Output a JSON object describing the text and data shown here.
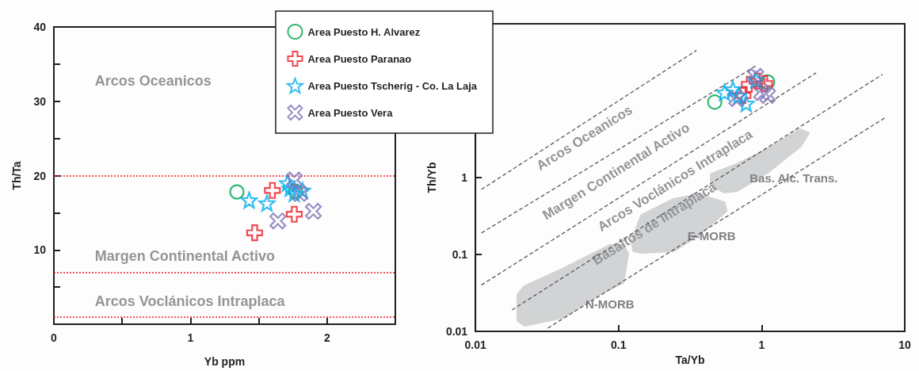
{
  "chart_data": [
    {
      "type": "scatter",
      "xlabel": "Yb ppm",
      "ylabel": "Th/Ta",
      "xlim": [
        0,
        2.5
      ],
      "ylim": [
        0,
        40
      ],
      "xticks": [
        0,
        {
          "value": 0.5,
          "label": null
        },
        1,
        {
          "value": 1.5,
          "label": null
        },
        2
      ],
      "yticks": [
        {
          "value": 0,
          "label": null
        },
        {
          "value": 5,
          "label": null
        },
        10,
        {
          "value": 15,
          "label": null
        },
        20,
        {
          "value": 25,
          "label": null
        },
        30,
        {
          "value": 35,
          "label": null
        },
        40
      ],
      "grid": false,
      "legend": "top right",
      "ref_lines": [
        {
          "axis": "y",
          "value": 20,
          "color": "#ed1c24",
          "line_style": "dotted"
        },
        {
          "axis": "y",
          "value": 7,
          "color": "#ed1c24",
          "line_style": "dotted"
        },
        {
          "axis": "y",
          "value": 1,
          "color": "#ed1c24",
          "line_style": "dotted"
        }
      ],
      "annotations": [
        "Arcos Oceanicos",
        "Margen Continental Activo",
        "Arcos Voclánicos Intraplaca"
      ],
      "series": [
        {
          "name": "Area Puesto H. Alvarez",
          "color": "#00a651",
          "marker": "circle",
          "x": [
            1.34,
            1.77
          ],
          "values": [
            17.8,
            17.9
          ]
        },
        {
          "name": "Area Puesto Paranao",
          "color": "#ed1c24",
          "marker": "cross",
          "x": [
            1.47,
            1.76,
            1.6
          ],
          "values": [
            12.3,
            14.8,
            18
          ]
        },
        {
          "name": "Area Puesto Tscherig - Co. La Laja",
          "color": "#00aeef",
          "marker": "star",
          "x": [
            1.43,
            1.56,
            1.71,
            1.76,
            1.82,
            1.73
          ],
          "values": [
            16.7,
            16.3,
            19,
            17.6,
            18,
            18.3
          ]
        },
        {
          "name": "Area Puesto Vera",
          "color": "#8073b8",
          "marker": "x",
          "x": [
            1.64,
            1.9,
            1.76,
            1.8
          ],
          "values": [
            13.9,
            15.2,
            19.4,
            17.6
          ]
        }
      ]
    },
    {
      "type": "scatter",
      "xlabel": "Ta/Yb",
      "ylabel": "Th/Yb",
      "log": "xy",
      "xlim": [
        0.01,
        10
      ],
      "ylim": [
        0.01,
        100
      ],
      "xticks": [
        0.01,
        0.1,
        1,
        10
      ],
      "yticks": [
        0.01,
        0.1,
        1,
        {
          "value": 10,
          "label": null
        },
        {
          "value": 100,
          "label": null
        }
      ],
      "grid": false,
      "annotations": [
        "Arcos Oceanicos",
        "Margen Continental Activo",
        "Arcos Voclánicos Intraplaca",
        "Basaltos de Intraplaca",
        "N-MORB",
        "E-MORB",
        "Bas. Alc. Trans."
      ],
      "series": [
        {
          "type": "line",
          "color": "#58595b",
          "line_style": "dashed",
          "marker": "none",
          "x": [
            0.011,
            0.35
          ],
          "values": [
            0.7,
            45
          ]
        },
        {
          "type": "line",
          "color": "#58595b",
          "line_style": "dashed",
          "marker": "none",
          "x": [
            0.011,
            0.93
          ],
          "values": [
            0.19,
            29
          ]
        },
        {
          "type": "line",
          "color": "#58595b",
          "line_style": "dashed",
          "marker": "none",
          "x": [
            0.011,
            2.4
          ],
          "values": [
            0.04,
            23
          ]
        },
        {
          "type": "line",
          "color": "#58595b",
          "line_style": "dashed",
          "marker": "none",
          "x": [
            0.018,
            7
          ],
          "values": [
            0.019,
            22
          ]
        },
        {
          "type": "line",
          "color": "#58595b",
          "line_style": "dashed",
          "marker": "none",
          "x": [
            0.032,
            7.4
          ],
          "values": [
            0.011,
            6.1
          ]
        },
        {
          "color": "#00a651",
          "marker": "circle",
          "x": [
            0.47,
            1.1
          ],
          "values": [
            9.6,
            17.5
          ]
        },
        {
          "color": "#ed1c24",
          "marker": "cross",
          "x": [
            0.74,
            0.82,
            1.05,
            0.93
          ],
          "values": [
            11.7,
            16.3,
            16.7,
            17.9
          ]
        },
        {
          "color": "#00aeef",
          "marker": "star",
          "x": [
            0.55,
            0.63,
            0.78,
            0.69,
            0.91
          ],
          "values": [
            12.8,
            14.1,
            9.2,
            11.7,
            18.8
          ]
        },
        {
          "color": "#8073b8",
          "marker": "x",
          "x": [
            0.67,
            0.91,
            1.1,
            1
          ],
          "values": [
            10.6,
            20.7,
            11.7,
            12.8
          ]
        }
      ]
    }
  ]
}
